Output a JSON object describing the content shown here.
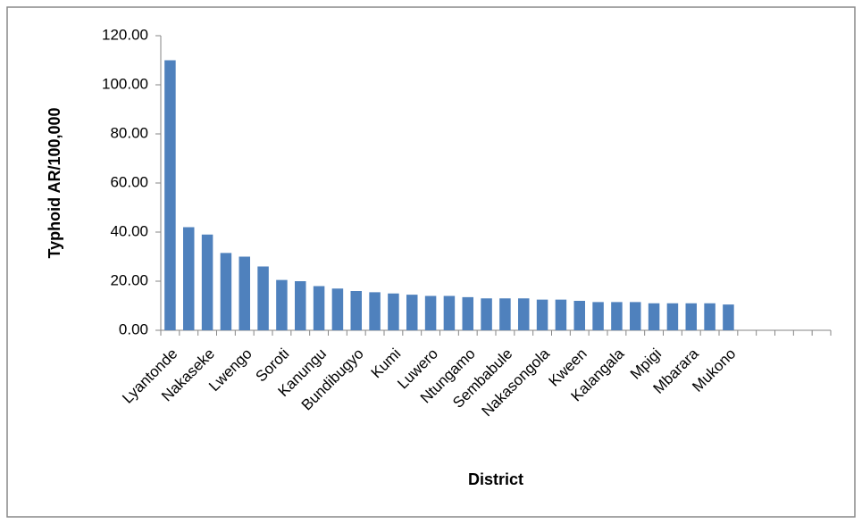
{
  "chart_data": {
    "type": "bar",
    "x_label": "District",
    "y_label": "Typhoid AR/100,000",
    "categories": [
      "Lyantonde",
      null,
      "Nakaseke",
      null,
      "Lwengo",
      null,
      "Soroti",
      null,
      "Kanungu",
      null,
      "Bundibugyo",
      null,
      "Kumi",
      null,
      "Luwero",
      null,
      "Ntungamo",
      null,
      "Sembabule",
      null,
      "Nakasongola",
      null,
      "Kween",
      null,
      "Kalangala",
      null,
      "Mpigi",
      null,
      "Mbarara",
      null,
      "Mukono",
      null,
      null,
      null,
      null,
      null
    ],
    "values": [
      110,
      42,
      39,
      31.5,
      30,
      26,
      20.5,
      20,
      18,
      17,
      16,
      15.5,
      15,
      14.5,
      14,
      14,
      13.5,
      13,
      13,
      13,
      12.5,
      12.5,
      12,
      11.5,
      11.5,
      11.5,
      11,
      11,
      11,
      11,
      10.5,
      null,
      null,
      null,
      null,
      null
    ],
    "color": "#4f81bd",
    "ylim": [
      0,
      120
    ],
    "yticks": [
      {
        "value": 0,
        "label": "0.00"
      },
      {
        "value": 20,
        "label": "20.00"
      },
      {
        "value": 40,
        "label": "40.00"
      },
      {
        "value": 60,
        "label": "60.00"
      },
      {
        "value": 80,
        "label": "80.00"
      },
      {
        "value": 100,
        "label": "100.00"
      },
      {
        "value": 120,
        "label": "120.00"
      }
    ],
    "grid": false
  }
}
